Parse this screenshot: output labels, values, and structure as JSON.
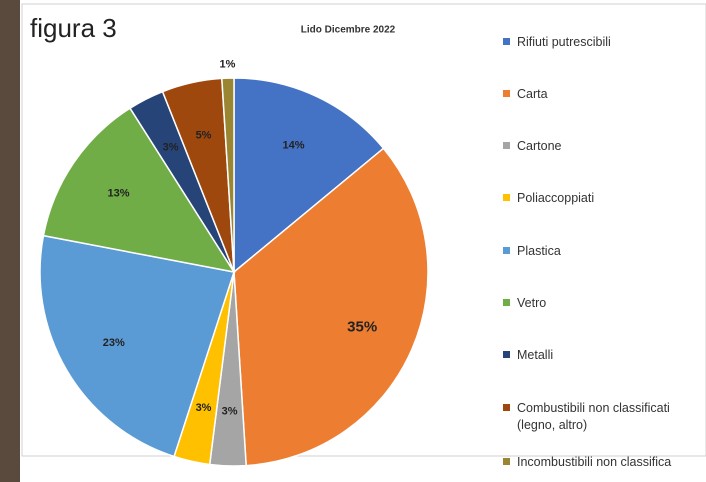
{
  "chart_data": {
    "type": "pie",
    "overlay_title": "figura 3",
    "title": "Lido Dicembre 2022",
    "categories": [
      "Rifiuti putrescibili",
      "Carta",
      "Cartone",
      "Poliaccoppiati",
      "Plastica",
      "Vetro",
      "Metalli",
      "Combustibili non classificati (legno, altro)",
      "Incombustibili non classifica"
    ],
    "values": [
      14,
      35,
      3,
      3,
      23,
      13,
      3,
      5,
      1
    ],
    "value_labels": [
      "14%",
      "35%",
      "3%",
      "3%",
      "23%",
      "13%",
      "3%",
      "5%",
      "1%"
    ],
    "colors": [
      "#4472c4",
      "#ed7d31",
      "#a5a5a5",
      "#ffc000",
      "#5b9bd5",
      "#70ad47",
      "#264478",
      "#9e480e",
      "#9a8632"
    ],
    "legend": "right"
  }
}
